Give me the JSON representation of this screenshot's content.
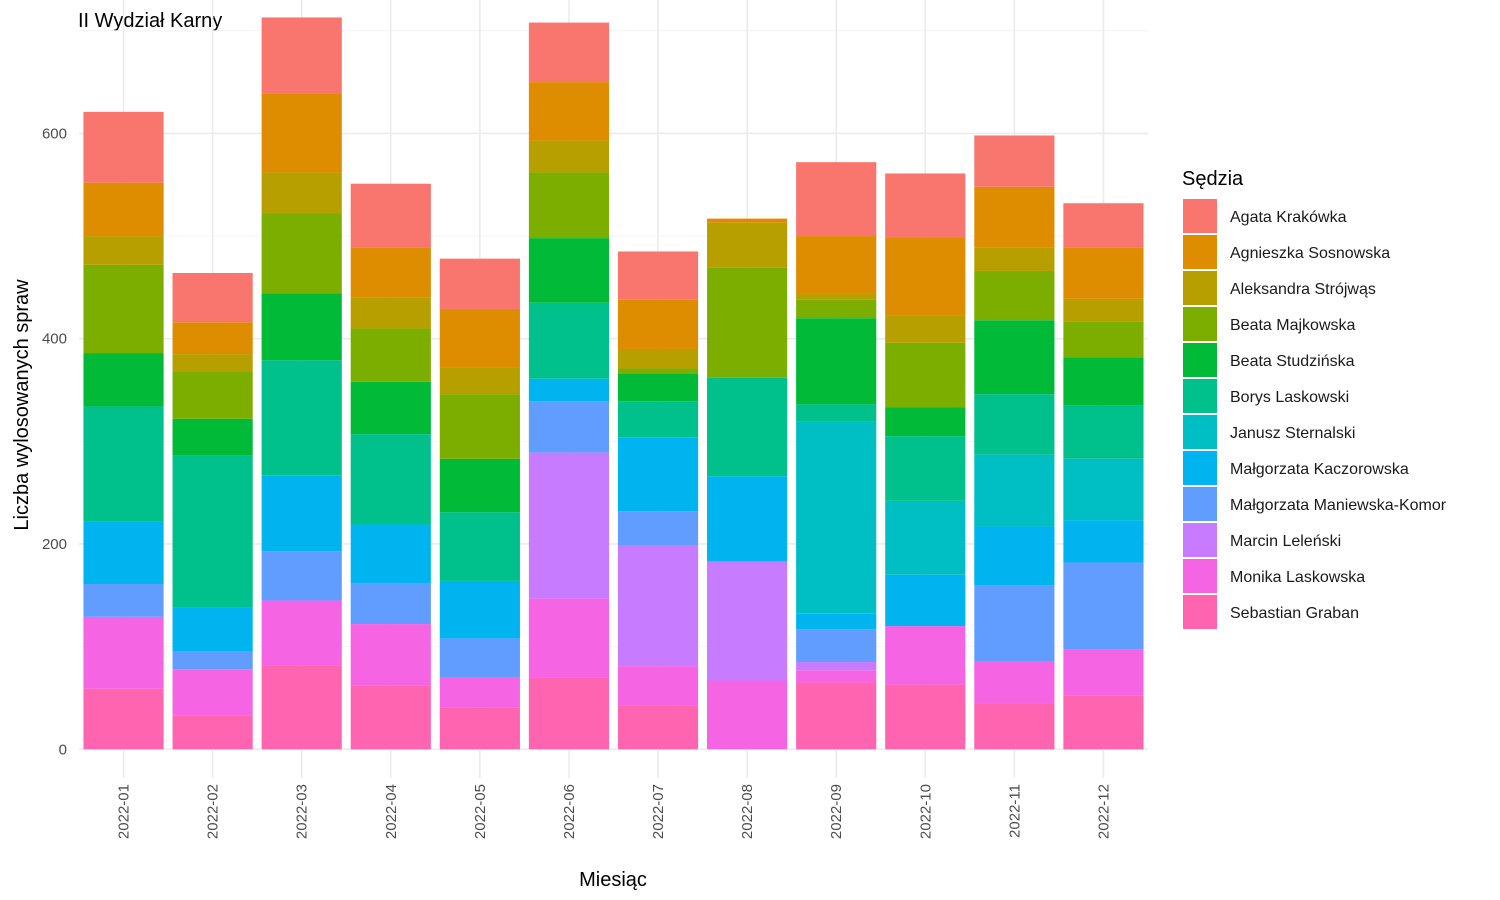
{
  "chart_data": {
    "type": "bar",
    "stacked": true,
    "title": "II Wydział Karny",
    "xlabel": "Miesiąc",
    "ylabel": "Liczba wylosowanych spraw",
    "ylim": [
      -28,
      730
    ],
    "yticks": [
      0,
      200,
      400,
      600
    ],
    "grid": true,
    "legend": {
      "title": "Sędzia",
      "position": "right"
    },
    "categories": [
      "2022-01",
      "2022-02",
      "2022-03",
      "2022-04",
      "2022-05",
      "2022-06",
      "2022-07",
      "2022-08",
      "2022-09",
      "2022-10",
      "2022-11",
      "2022-12"
    ],
    "series": [
      {
        "name": "Agata Krakówka",
        "color": "#F8766D",
        "values": [
          69,
          48,
          74,
          62,
          49,
          58,
          47,
          0,
          72,
          62,
          50,
          43
        ]
      },
      {
        "name": "Agnieszka Sosnowska",
        "color": "#DE8C00",
        "values": [
          52,
          31,
          77,
          49,
          57,
          57,
          48,
          4,
          56,
          76,
          59,
          50
        ]
      },
      {
        "name": "Aleksandra Strójwąs",
        "color": "#B79F00",
        "values": [
          28,
          17,
          40,
          30,
          26,
          31,
          19,
          44,
          6,
          27,
          23,
          22
        ]
      },
      {
        "name": "Beata Majkowska",
        "color": "#7CAE00",
        "values": [
          86,
          46,
          78,
          52,
          63,
          64,
          5,
          107,
          18,
          63,
          48,
          35
        ]
      },
      {
        "name": "Beata Studzińska",
        "color": "#00BA38",
        "values": [
          52,
          36,
          65,
          51,
          52,
          63,
          27,
          0,
          84,
          28,
          72,
          47
        ]
      },
      {
        "name": "Borys Laskowski",
        "color": "#00C08B",
        "values": [
          112,
          148,
          112,
          88,
          67,
          74,
          35,
          96,
          17,
          63,
          59,
          52
        ]
      },
      {
        "name": "Janusz Sternalski",
        "color": "#00BFC4",
        "values": [
          0,
          0,
          0,
          0,
          0,
          0,
          0,
          0,
          187,
          72,
          70,
          60
        ]
      },
      {
        "name": "Małgorzata Kaczorowska",
        "color": "#00B4F0",
        "values": [
          61,
          43,
          74,
          57,
          56,
          22,
          72,
          83,
          15,
          50,
          57,
          41
        ]
      },
      {
        "name": "Małgorzata Maniewska-Komor",
        "color": "#619CFF",
        "values": [
          32,
          17,
          48,
          40,
          38,
          50,
          33,
          0,
          32,
          0,
          74,
          85
        ]
      },
      {
        "name": "Marcin Leleński",
        "color": "#C77CFF",
        "values": [
          0,
          0,
          0,
          0,
          0,
          142,
          118,
          116,
          8,
          0,
          0,
          0
        ]
      },
      {
        "name": "Monika Laskowska",
        "color": "#F564E3",
        "values": [
          70,
          45,
          63,
          60,
          29,
          77,
          38,
          67,
          12,
          57,
          41,
          45
        ]
      },
      {
        "name": "Sebastian Graban",
        "color": "#FF64B0",
        "values": [
          59,
          33,
          82,
          62,
          41,
          70,
          43,
          0,
          65,
          63,
          45,
          52
        ]
      }
    ]
  }
}
